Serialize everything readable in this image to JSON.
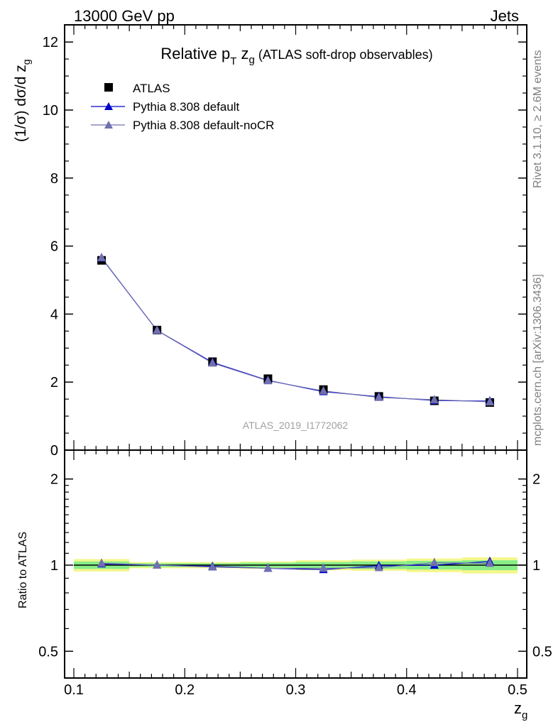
{
  "header": {
    "left": "13000 GeV pp",
    "right": "Jets"
  },
  "side_notes": {
    "rivet": "Rivet 3.1.10, ≥ 2.6M events",
    "mcplots": "mcplots.cern.ch [arXiv:1306.3436]"
  },
  "watermark": "ATLAS_2019_I1772062",
  "chart_data": [
    {
      "type": "line",
      "panel": "main",
      "title_main": "Relative p",
      "title_sub": "T",
      "title_var": " z",
      "title_var_sub": "g",
      "title_rest": " (ATLAS soft-drop observables)",
      "ylabel": "(1/σ) dσ/d z",
      "ylabel_sub": "g",
      "xlim": [
        0.1,
        0.5
      ],
      "ylim": [
        0,
        12.5
      ],
      "yticks": [
        "0",
        "2",
        "4",
        "6",
        "8",
        "10",
        "12"
      ],
      "x": [
        0.125,
        0.175,
        0.225,
        0.275,
        0.325,
        0.375,
        0.425,
        0.475
      ],
      "series": [
        {
          "name": "ATLAS",
          "marker": "square",
          "color": "#000000",
          "values": [
            5.58,
            3.53,
            2.6,
            2.1,
            1.78,
            1.58,
            1.45,
            1.4
          ]
        },
        {
          "name": "Pythia 8.308 default",
          "marker": "triangle",
          "color": "#0000cc",
          "values": [
            5.65,
            3.52,
            2.58,
            2.05,
            1.72,
            1.57,
            1.46,
            1.44
          ]
        },
        {
          "name": "Pythia 8.308 default-noCR",
          "marker": "triangle",
          "color": "#7070b0",
          "values": [
            5.66,
            3.52,
            2.56,
            2.04,
            1.74,
            1.55,
            1.48,
            1.42
          ]
        }
      ],
      "legend_position": "top-left"
    },
    {
      "type": "line",
      "panel": "ratio",
      "ylabel": "Ratio to ATLAS",
      "xlabel": "z",
      "xlabel_sub": "g",
      "xlim": [
        0.1,
        0.5
      ],
      "ylim": [
        0.4,
        2.5
      ],
      "yscale": "log",
      "yticks": [
        "0.5",
        "1",
        "2"
      ],
      "xticks": [
        "0.1",
        "0.2",
        "0.3",
        "0.4",
        "0.5"
      ],
      "x": [
        0.125,
        0.175,
        0.225,
        0.275,
        0.325,
        0.375,
        0.425,
        0.475
      ],
      "bin_edges": [
        0.1,
        0.15,
        0.2,
        0.25,
        0.3,
        0.35,
        0.4,
        0.45,
        0.5
      ],
      "band_inner": [
        [
          0.97,
          1.03
        ],
        [
          0.985,
          1.015
        ],
        [
          0.985,
          1.015
        ],
        [
          0.98,
          1.02
        ],
        [
          0.975,
          1.025
        ],
        [
          0.97,
          1.03
        ],
        [
          0.965,
          1.035
        ],
        [
          0.96,
          1.04
        ]
      ],
      "band_outer": [
        [
          0.95,
          1.05
        ],
        [
          0.975,
          1.025
        ],
        [
          0.975,
          1.025
        ],
        [
          0.97,
          1.03
        ],
        [
          0.96,
          1.04
        ],
        [
          0.955,
          1.045
        ],
        [
          0.945,
          1.055
        ],
        [
          0.935,
          1.065
        ]
      ],
      "band_colors": {
        "inner": "#87ed87",
        "outer": "#f4f78c"
      },
      "series": [
        {
          "name": "Pythia 8.308 default",
          "marker": "triangle",
          "color": "#0000cc",
          "values": [
            1.01,
            1.0,
            0.99,
            0.975,
            0.965,
            0.995,
            1.0,
            1.03
          ]
        },
        {
          "name": "Pythia 8.308 default-noCR",
          "marker": "triangle",
          "color": "#7070b0",
          "values": [
            1.015,
            1.0,
            0.985,
            0.975,
            0.975,
            0.98,
            1.02,
            1.015
          ]
        }
      ]
    }
  ]
}
